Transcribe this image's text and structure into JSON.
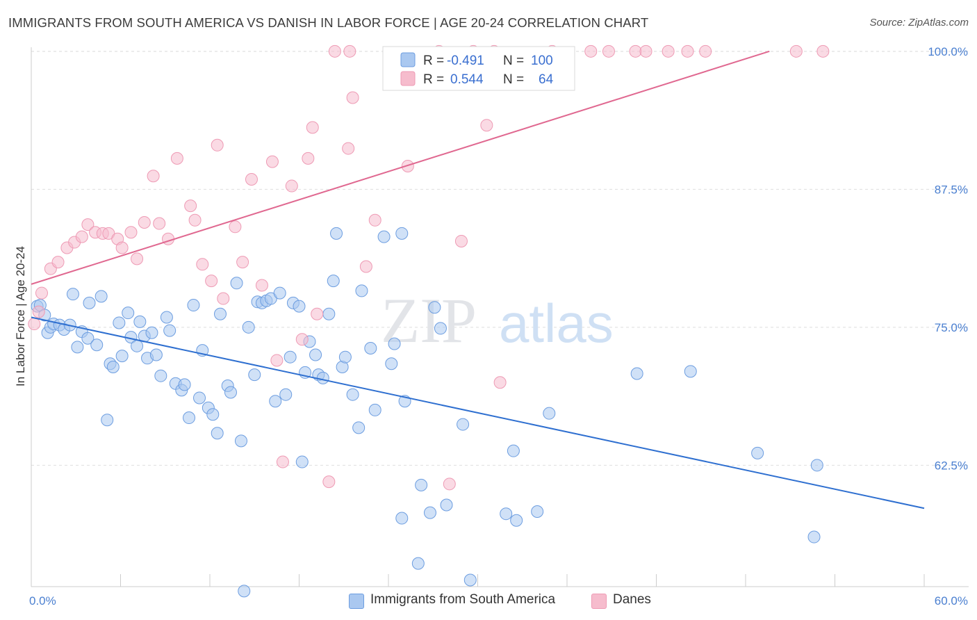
{
  "title": "IMMIGRANTS FROM SOUTH AMERICA VS DANISH IN LABOR FORCE | AGE 20-24 CORRELATION CHART",
  "source": "Source: ZipAtlas.com",
  "watermark": {
    "part1": "ZIP",
    "part2": "atlas"
  },
  "colors": {
    "blue_fill": "#aac8f0",
    "blue_stroke": "#6c9de0",
    "blue_line": "#2e6fd0",
    "pink_fill": "#f6bccd",
    "pink_stroke": "#ee9ab4",
    "pink_line": "#e06890",
    "axis_label": "#4a7fd0"
  },
  "legend": {
    "rows": [
      {
        "r_label": "R =",
        "r_value": "-0.491",
        "n_label": "N =",
        "n_value": "100"
      },
      {
        "r_label": "R =",
        "r_value": "0.544",
        "n_label": "N =",
        "n_value": "64"
      }
    ]
  },
  "bottom_legend": {
    "items": [
      {
        "label": "Immigrants from South America"
      },
      {
        "label": "Danes"
      }
    ]
  },
  "chart_data": {
    "type": "scatter",
    "title": "IMMIGRANTS FROM SOUTH AMERICA VS DANISH IN LABOR FORCE | AGE 20-24 CORRELATION CHART",
    "xlabel": "",
    "ylabel": "In Labor Force | Age 20-24",
    "xlim": [
      0,
      60
    ],
    "ylim": [
      51.5,
      101.5
    ],
    "x_tick_labels": [
      "0.0%",
      "60.0%"
    ],
    "y_ticks": [
      62.5,
      75.0,
      87.5,
      100.0
    ],
    "y_tick_labels": [
      "62.5%",
      "75.0%",
      "87.5%",
      "100.0%"
    ],
    "grid": true,
    "legend_position": "top-center",
    "series": [
      {
        "name": "Immigrants from South America",
        "color": "#aac8f0",
        "trend": {
          "x": [
            0,
            60
          ],
          "y": [
            75.9,
            58.6
          ]
        },
        "points": [
          [
            0.4,
            76.9
          ],
          [
            0.6,
            77.0
          ],
          [
            0.9,
            76.1
          ],
          [
            1.1,
            74.5
          ],
          [
            1.3,
            75.0
          ],
          [
            1.5,
            75.3
          ],
          [
            1.9,
            75.2
          ],
          [
            2.2,
            74.8
          ],
          [
            2.6,
            75.2
          ],
          [
            2.8,
            78.0
          ],
          [
            3.1,
            73.2
          ],
          [
            3.4,
            74.6
          ],
          [
            3.8,
            74.0
          ],
          [
            3.9,
            77.2
          ],
          [
            4.4,
            73.4
          ],
          [
            4.7,
            77.8
          ],
          [
            5.1,
            66.6
          ],
          [
            5.3,
            71.7
          ],
          [
            5.5,
            71.4
          ],
          [
            5.9,
            75.4
          ],
          [
            6.1,
            72.4
          ],
          [
            6.5,
            76.3
          ],
          [
            6.7,
            74.1
          ],
          [
            7.1,
            73.3
          ],
          [
            7.3,
            75.5
          ],
          [
            7.6,
            74.2
          ],
          [
            7.8,
            72.2
          ],
          [
            8.1,
            74.5
          ],
          [
            8.4,
            72.5
          ],
          [
            8.7,
            70.6
          ],
          [
            9.1,
            75.9
          ],
          [
            9.3,
            74.7
          ],
          [
            9.7,
            69.9
          ],
          [
            10.1,
            69.3
          ],
          [
            10.3,
            69.8
          ],
          [
            10.6,
            66.8
          ],
          [
            10.9,
            77.0
          ],
          [
            11.3,
            68.6
          ],
          [
            11.5,
            72.9
          ],
          [
            11.9,
            67.7
          ],
          [
            12.2,
            67.1
          ],
          [
            12.5,
            65.4
          ],
          [
            12.7,
            76.2
          ],
          [
            13.2,
            69.7
          ],
          [
            13.4,
            69.1
          ],
          [
            13.8,
            79.0
          ],
          [
            14.1,
            64.7
          ],
          [
            14.3,
            51.1
          ],
          [
            14.6,
            75.0
          ],
          [
            15.0,
            70.7
          ],
          [
            15.2,
            77.3
          ],
          [
            15.5,
            77.2
          ],
          [
            15.8,
            77.4
          ],
          [
            16.1,
            77.6
          ],
          [
            16.4,
            68.3
          ],
          [
            16.7,
            78.1
          ],
          [
            17.1,
            68.9
          ],
          [
            17.4,
            72.3
          ],
          [
            17.6,
            77.2
          ],
          [
            18.0,
            76.9
          ],
          [
            18.2,
            62.8
          ],
          [
            18.4,
            70.9
          ],
          [
            18.7,
            73.7
          ],
          [
            19.1,
            72.5
          ],
          [
            19.3,
            70.7
          ],
          [
            19.6,
            70.4
          ],
          [
            20.0,
            76.2
          ],
          [
            20.3,
            79.2
          ],
          [
            20.5,
            83.5
          ],
          [
            20.9,
            71.4
          ],
          [
            21.1,
            72.3
          ],
          [
            21.6,
            68.9
          ],
          [
            22.0,
            65.9
          ],
          [
            22.2,
            78.3
          ],
          [
            22.8,
            73.1
          ],
          [
            23.1,
            67.5
          ],
          [
            23.7,
            83.2
          ],
          [
            24.2,
            71.7
          ],
          [
            24.4,
            73.5
          ],
          [
            24.9,
            57.7
          ],
          [
            25.1,
            68.3
          ],
          [
            26.0,
            53.6
          ],
          [
            26.2,
            60.7
          ],
          [
            26.8,
            58.2
          ],
          [
            27.1,
            76.8
          ],
          [
            27.5,
            74.9
          ],
          [
            27.9,
            58.9
          ],
          [
            29.0,
            66.2
          ],
          [
            29.5,
            52.1
          ],
          [
            31.9,
            58.1
          ],
          [
            32.4,
            63.8
          ],
          [
            32.6,
            57.5
          ],
          [
            34.0,
            58.3
          ],
          [
            34.8,
            67.2
          ],
          [
            40.7,
            70.8
          ],
          [
            44.3,
            71.0
          ],
          [
            48.8,
            63.6
          ],
          [
            52.8,
            62.5
          ],
          [
            52.6,
            56.0
          ],
          [
            24.9,
            83.5
          ]
        ]
      },
      {
        "name": "Danes",
        "color": "#f6bccd",
        "trend": {
          "x": [
            0,
            49.6
          ],
          "y": [
            78.9,
            100.0
          ]
        },
        "points": [
          [
            0.2,
            75.3
          ],
          [
            0.5,
            76.4
          ],
          [
            0.7,
            78.1
          ],
          [
            1.3,
            80.3
          ],
          [
            1.8,
            80.9
          ],
          [
            2.4,
            82.2
          ],
          [
            2.9,
            82.7
          ],
          [
            3.4,
            83.2
          ],
          [
            3.8,
            84.3
          ],
          [
            4.3,
            83.6
          ],
          [
            4.8,
            83.5
          ],
          [
            5.2,
            83.5
          ],
          [
            5.8,
            83.0
          ],
          [
            6.1,
            82.2
          ],
          [
            6.7,
            83.6
          ],
          [
            7.1,
            81.2
          ],
          [
            7.6,
            84.5
          ],
          [
            8.2,
            88.7
          ],
          [
            8.6,
            84.4
          ],
          [
            9.2,
            83.0
          ],
          [
            9.8,
            90.3
          ],
          [
            10.7,
            86.0
          ],
          [
            11.0,
            84.7
          ],
          [
            11.5,
            80.7
          ],
          [
            12.1,
            79.2
          ],
          [
            12.5,
            91.5
          ],
          [
            12.9,
            77.6
          ],
          [
            13.7,
            84.1
          ],
          [
            14.2,
            80.9
          ],
          [
            14.8,
            88.4
          ],
          [
            15.5,
            78.8
          ],
          [
            16.2,
            90.0
          ],
          [
            16.5,
            72.0
          ],
          [
            16.9,
            62.8
          ],
          [
            17.5,
            87.8
          ],
          [
            18.2,
            73.9
          ],
          [
            18.6,
            90.3
          ],
          [
            18.9,
            93.1
          ],
          [
            19.2,
            76.2
          ],
          [
            20.0,
            61.0
          ],
          [
            20.4,
            100.0
          ],
          [
            21.3,
            91.2
          ],
          [
            21.4,
            100.0
          ],
          [
            21.6,
            95.8
          ],
          [
            22.5,
            80.5
          ],
          [
            23.1,
            84.7
          ],
          [
            25.3,
            89.6
          ],
          [
            27.4,
            100.0
          ],
          [
            28.1,
            60.8
          ],
          [
            28.9,
            82.8
          ],
          [
            29.7,
            100.0
          ],
          [
            30.6,
            93.3
          ],
          [
            31.1,
            100.0
          ],
          [
            31.5,
            70.0
          ],
          [
            35.0,
            100.0
          ],
          [
            37.6,
            100.0
          ],
          [
            38.8,
            100.0
          ],
          [
            40.6,
            100.0
          ],
          [
            41.3,
            100.0
          ],
          [
            42.8,
            100.0
          ],
          [
            44.1,
            100.0
          ],
          [
            45.3,
            100.0
          ],
          [
            51.4,
            100.0
          ],
          [
            53.2,
            100.0
          ]
        ]
      }
    ]
  }
}
